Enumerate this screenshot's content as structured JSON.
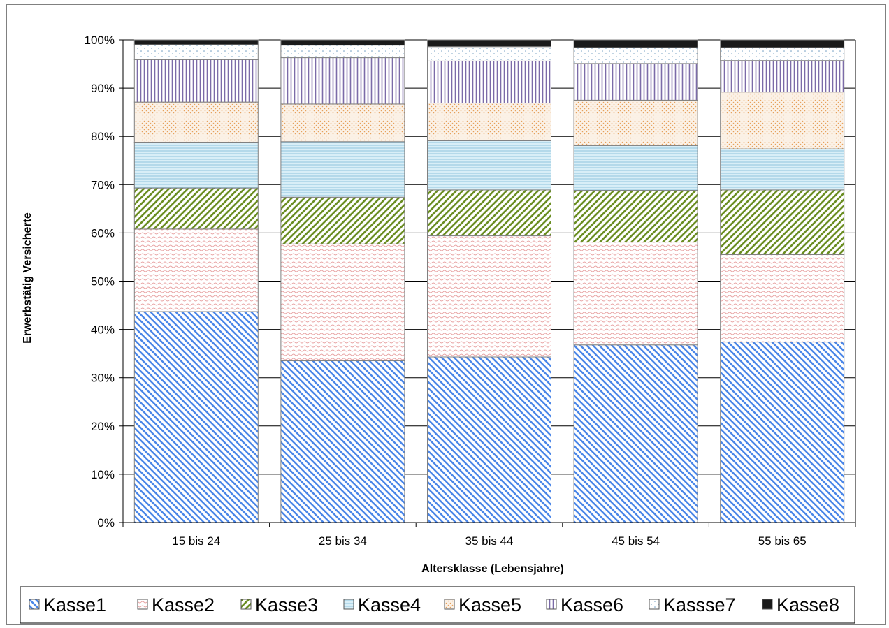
{
  "colors": {
    "Kasse1": "#4a86e8",
    "Kasse2": "#e8a3a3",
    "Kasse3": "#6b8e23",
    "Kasse4": "#9fd0e6",
    "Kasse5": "#e6a15c",
    "Kasse6": "#7b6ba8",
    "Kasse7": "#9fbcd4",
    "Kasse8": "#1a1a1a",
    "background": "#ffffff",
    "grid": "#000000"
  },
  "chart_data": {
    "type": "bar",
    "stacked": true,
    "percent_stacked": true,
    "title": "",
    "xlabel": "Altersklasse  (Lebensjahre)",
    "ylabel": "Erwerbstätig Versicherte",
    "categories": [
      "15 bis 24",
      "25 bis 34",
      "35 bis 44",
      "45 bis 54",
      "55 bis 65"
    ],
    "ylim": [
      0,
      100
    ],
    "y_ticks": [
      0,
      10,
      20,
      30,
      40,
      50,
      60,
      70,
      80,
      90,
      100
    ],
    "y_tick_labels": [
      "0%",
      "10%",
      "20%",
      "30%",
      "40%",
      "50%",
      "60%",
      "70%",
      "80%",
      "90%",
      "100%"
    ],
    "grid": true,
    "legend_position": "bottom",
    "series": [
      {
        "name": "Kasse1",
        "pattern": "diagonal-down",
        "color": "#4a86e8",
        "values": [
          43.7,
          33.5,
          34.3,
          36.8,
          37.4
        ]
      },
      {
        "name": "Kasse2",
        "pattern": "wave",
        "color": "#e8a3a3",
        "values": [
          17.1,
          24.2,
          25.1,
          21.3,
          18.1
        ]
      },
      {
        "name": "Kasse3",
        "pattern": "diagonal-up",
        "color": "#6b8e23",
        "values": [
          8.5,
          9.7,
          9.5,
          10.7,
          13.4
        ]
      },
      {
        "name": "Kasse4",
        "pattern": "horizontal",
        "color": "#9fd0e6",
        "values": [
          9.5,
          11.5,
          10.2,
          9.3,
          8.5
        ]
      },
      {
        "name": "Kasse5",
        "pattern": "dots",
        "color": "#e6a15c",
        "values": [
          8.3,
          7.8,
          7.8,
          9.4,
          11.8
        ]
      },
      {
        "name": "Kasse6",
        "pattern": "vertical",
        "color": "#7b6ba8",
        "values": [
          8.8,
          9.6,
          8.7,
          7.6,
          6.5
        ]
      },
      {
        "name": "Kassse7",
        "pattern": "sparse-dots",
        "color": "#9fbcd4",
        "values": [
          3.1,
          2.6,
          3.0,
          3.3,
          2.7
        ]
      },
      {
        "name": "Kasse8",
        "pattern": "solid",
        "color": "#1a1a1a",
        "values": [
          1.0,
          1.1,
          1.4,
          1.6,
          1.6
        ]
      }
    ]
  },
  "legend": {
    "items": [
      {
        "label": "Kasse1",
        "icon": "diagonal-stripe-swatch"
      },
      {
        "label": "Kasse2",
        "icon": "wave-swatch"
      },
      {
        "label": "Kasse3",
        "icon": "diagonal-stripe-swatch"
      },
      {
        "label": "Kasse4",
        "icon": "horizontal-stripe-swatch"
      },
      {
        "label": "Kasse5",
        "icon": "dot-swatch"
      },
      {
        "label": "Kasse6",
        "icon": "vertical-stripe-swatch"
      },
      {
        "label": "Kassse7",
        "icon": "sparse-dot-swatch"
      },
      {
        "label": "Kasse8",
        "icon": "solid-swatch"
      }
    ]
  }
}
